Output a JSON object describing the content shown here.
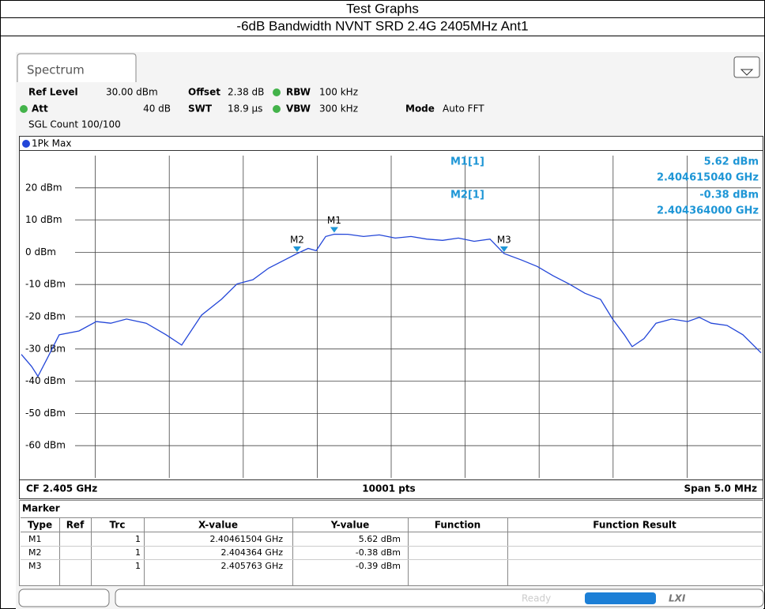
{
  "header": {
    "title": "Test Graphs",
    "subtitle": "-6dB Bandwidth NVNT SRD 2.4G 2405MHz Ant1"
  },
  "tab": "Spectrum",
  "settings": {
    "ref_level": {
      "label": "Ref Level",
      "value": "30.00 dBm"
    },
    "offset": {
      "label": "Offset",
      "value": "2.38 dB"
    },
    "rbw": {
      "label": "RBW",
      "value": "100 kHz"
    },
    "att": {
      "label": "Att",
      "value": "40 dB"
    },
    "swt": {
      "label": "SWT",
      "value": "18.9 µs"
    },
    "vbw": {
      "label": "VBW",
      "value": "300 kHz"
    },
    "mode": {
      "label": "Mode",
      "value": "Auto FFT"
    },
    "sgl_count": "SGL Count 100/100"
  },
  "readout": [
    {
      "name": "M1[1]",
      "level": "5.62 dBm",
      "freq": "2.404615040 GHz"
    },
    {
      "name": "M2[1]",
      "level": "-0.38 dBm",
      "freq": "2.404364000 GHz"
    }
  ],
  "chart_data": {
    "type": "line",
    "xlim": [
      2.4025,
      2.4075
    ],
    "ylim": [
      -70,
      30
    ],
    "yticks": [
      {
        "value": 20,
        "label": "20 dBm"
      },
      {
        "value": 10,
        "label": "10 dBm"
      },
      {
        "value": 0,
        "label": "0 dBm"
      },
      {
        "value": -10,
        "label": "-10 dBm"
      },
      {
        "value": -20,
        "label": "-20 dBm"
      },
      {
        "value": -30,
        "label": "-30 dBm"
      },
      {
        "value": -40,
        "label": "-40 dBm"
      },
      {
        "value": -50,
        "label": "-50 dBm"
      },
      {
        "value": -60,
        "label": "-60 dBm"
      }
    ],
    "grid": true,
    "x": [
      2.4025,
      2.402569,
      2.402612,
      2.402676,
      2.402756,
      2.40289,
      2.403007,
      2.403104,
      2.403211,
      2.403344,
      2.403478,
      2.403584,
      2.403718,
      2.403852,
      2.403958,
      2.404065,
      2.404172,
      2.404279,
      2.404364,
      2.404439,
      2.404493,
      2.404557,
      2.404615,
      2.404706,
      2.404813,
      2.40492,
      2.405027,
      2.405134,
      2.40524,
      2.405347,
      2.405454,
      2.405561,
      2.405668,
      2.405763,
      2.405881,
      2.405988,
      2.406095,
      2.406202,
      2.406309,
      2.406415,
      2.406496,
      2.406576,
      2.406629,
      2.406709,
      2.40679,
      2.406896,
      2.407003,
      2.407083,
      2.407163,
      2.40727,
      2.407377,
      2.4075
    ],
    "series": [
      {
        "name": "1Pk Max",
        "color": "#2346d8",
        "values": [
          -31.7,
          -35.4,
          -38.5,
          -32.9,
          -25.6,
          -24.4,
          -21.5,
          -22,
          -20.7,
          -22,
          -25.6,
          -28.8,
          -19.5,
          -14.6,
          -9.8,
          -8.5,
          -4.9,
          -2.4,
          -0.38,
          1.2,
          0.5,
          4.9,
          5.62,
          5.6,
          4.9,
          5.4,
          4.4,
          4.9,
          4.1,
          3.7,
          4.4,
          3.4,
          4.1,
          -0.39,
          -2.4,
          -4.4,
          -7.3,
          -9.8,
          -12.7,
          -14.6,
          -20.7,
          -25.6,
          -29.3,
          -26.8,
          -22,
          -20.7,
          -21.5,
          -20.2,
          -22,
          -22.7,
          -25.6,
          -31.2
        ]
      }
    ],
    "markers": [
      {
        "label": "M1",
        "x": 2.40461504,
        "y": 5.62
      },
      {
        "label": "M2",
        "x": 2.404364,
        "y": -0.38
      },
      {
        "label": "M3",
        "x": 2.405763,
        "y": -0.39
      }
    ],
    "marker_color": "#1e96d6"
  },
  "footer": {
    "cf": "CF 2.405 GHz",
    "points": "10001 pts",
    "span": "Span 5.0 MHz"
  },
  "marker_table": {
    "title": "Marker",
    "columns": [
      "Type",
      "Ref",
      "Trc",
      "X-value",
      "Y-value",
      "Function",
      "Function Result"
    ],
    "rows": [
      {
        "type": "M1",
        "trc": "1",
        "x": "2.40461504 GHz",
        "y": "5.62 dBm"
      },
      {
        "type": "M2",
        "trc": "1",
        "x": "2.404364 GHz",
        "y": "-0.38 dBm"
      },
      {
        "type": "M3",
        "trc": "1",
        "x": "2.405763 GHz",
        "y": "-0.39 dBm"
      }
    ]
  },
  "status": {
    "ready": "Ready",
    "lxi": "LXI"
  }
}
